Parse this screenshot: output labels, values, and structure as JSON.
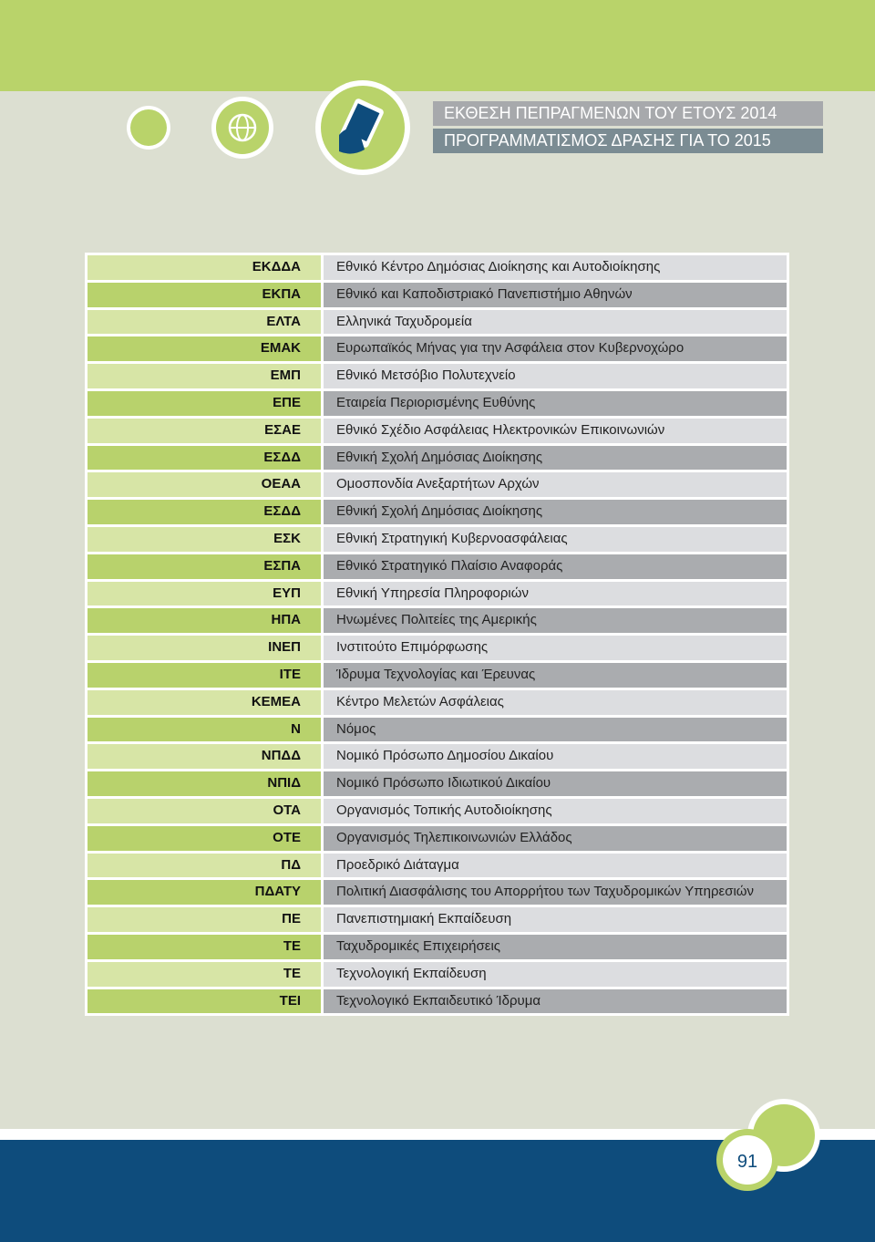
{
  "header": {
    "title": "ΕΚΘΕΣΗ ΠΕΠΡΑΓΜΕΝΩΝ ΤΟΥ ΕΤΟΥΣ 2014",
    "subtitle": "ΠΡΟΓΡΑΜΜΑΤΙΣΜΟΣ ΔΡΑΣΗΣ ΓΙΑ ΤΟ 2015"
  },
  "table": {
    "rows": [
      [
        "ΕΚΔΔΑ",
        "Εθνικό Κέντρο Δημόσιας Διοίκησης και Αυτοδιοίκησης"
      ],
      [
        "ΕΚΠΑ",
        "Εθνικό και Καποδιστριακό Πανεπιστήμιο Αθηνών"
      ],
      [
        "ΕΛΤΑ",
        "Ελληνικά Ταχυδρομεία"
      ],
      [
        "ΕΜΑΚ",
        "Ευρωπαϊκός Μήνας για την Ασφάλεια στον Κυβερνοχώρο"
      ],
      [
        "ΕΜΠ",
        "Εθνικό Μετσόβιο Πολυτεχνείο"
      ],
      [
        "ΕΠΕ",
        "Εταιρεία Περιορισμένης Ευθύνης"
      ],
      [
        "ΕΣΑΕ",
        "Εθνικό Σχέδιο Ασφάλειας Ηλεκτρονικών Επικοινωνιών"
      ],
      [
        "ΕΣΔΔ",
        "Εθνική Σχολή Δημόσιας Διοίκησης"
      ],
      [
        "ΟΕΑΑ",
        "Ομοσπονδία Ανεξαρτήτων Αρχών"
      ],
      [
        "ΕΣΔΔ",
        "Εθνική Σχολή Δημόσιας Διοίκησης"
      ],
      [
        "ΕΣΚ",
        "Εθνική Στρατηγική Κυβερνοασφάλειας"
      ],
      [
        "ΕΣΠΑ",
        "Εθνικό Στρατηγικό Πλαίσιο Αναφοράς"
      ],
      [
        "ΕΥΠ",
        "Εθνική Υπηρεσία Πληροφοριών"
      ],
      [
        "ΗΠΑ",
        "Ηνωμένες Πολιτείες της Αμερικής"
      ],
      [
        "ΙΝΕΠ",
        "Ινστιτούτο Επιμόρφωσης"
      ],
      [
        "ΙΤΕ",
        "Ίδρυμα Τεχνολογίας και Έρευνας"
      ],
      [
        "ΚΕΜΕΑ",
        "Κέντρο Μελετών Ασφάλειας"
      ],
      [
        "Ν",
        "Νόμος"
      ],
      [
        "ΝΠΔΔ",
        "Νομικό Πρόσωπο Δημοσίου Δικαίου"
      ],
      [
        "ΝΠΙΔ",
        "Νομικό Πρόσωπο Ιδιωτικού Δικαίου"
      ],
      [
        "ΟΤΑ",
        "Οργανισμός Τοπικής Αυτοδιοίκησης"
      ],
      [
        "ΟΤΕ",
        "Οργανισμός Τηλεπικοινωνιών Ελλάδος"
      ],
      [
        "ΠΔ",
        "Προεδρικό Διάταγμα"
      ],
      [
        "ΠΔΑΤΥ",
        "Πολιτική Διασφάλισης του Απορρήτου των Ταχυδρομικών Υπηρεσιών"
      ],
      [
        "ΠΕ",
        "Πανεπιστημιακή Εκπαίδευση"
      ],
      [
        "ΤΕ",
        "Ταχυδρομικές Επιχειρήσεις"
      ],
      [
        "ΤΕ",
        "Τεχνολογική Εκπαίδευση"
      ],
      [
        "ΤΕΙ",
        "Τεχνολογικό Εκπαιδευτικό Ίδρυμα"
      ]
    ]
  },
  "page_number": "91"
}
